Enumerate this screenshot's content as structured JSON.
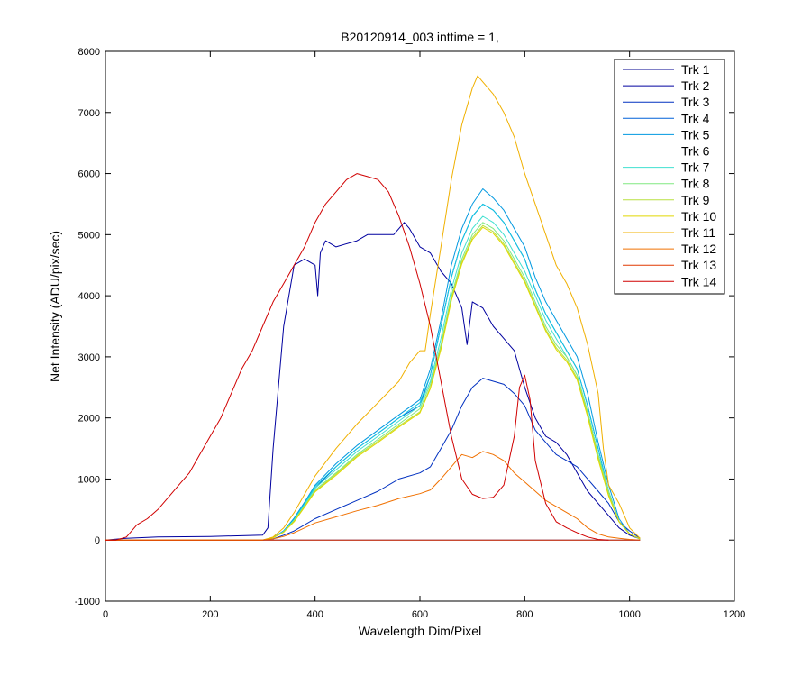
{
  "chart_data": {
    "type": "line",
    "title": "B20120914_003 inttime = 1,",
    "xlabel": "Wavelength Dim/Pixel",
    "ylabel": "Net Intensity (ADU/pix/sec)",
    "xlim": [
      0,
      1200
    ],
    "ylim": [
      -1000,
      8000
    ],
    "xticks": [
      "0",
      "200",
      "400",
      "600",
      "800",
      "1000",
      "1200"
    ],
    "yticks": [
      "-1000",
      "0",
      "1000",
      "2000",
      "3000",
      "4000",
      "5000",
      "6000",
      "7000",
      "8000"
    ],
    "grid": false,
    "legend": "top-right",
    "series": [
      {
        "name": "Trk 1",
        "color": "#00008f",
        "x": [
          0,
          100,
          200,
          300,
          400,
          500,
          600,
          700,
          800,
          900,
          1000,
          1020
        ],
        "y": [
          0,
          0,
          0,
          0,
          0,
          0,
          0,
          0,
          0,
          0,
          0,
          0
        ]
      },
      {
        "name": "Trk 2",
        "color": "#00009f",
        "x": [
          0,
          40,
          100,
          200,
          300,
          310,
          320,
          340,
          360,
          380,
          400,
          405,
          410,
          420,
          440,
          480,
          500,
          520,
          550,
          570,
          580,
          600,
          620,
          640,
          660,
          680,
          690,
          700,
          720,
          740,
          760,
          780,
          800,
          820,
          840,
          860,
          880,
          900,
          920,
          940,
          960,
          980,
          1000,
          1020
        ],
        "y": [
          0,
          30,
          50,
          60,
          80,
          200,
          1500,
          3500,
          4500,
          4600,
          4500,
          4000,
          4700,
          4900,
          4800,
          4900,
          5000,
          5000,
          5000,
          5200,
          5100,
          4800,
          4700,
          4400,
          4200,
          3800,
          3200,
          3900,
          3800,
          3500,
          3300,
          3100,
          2500,
          2000,
          1700,
          1600,
          1400,
          1100,
          800,
          600,
          400,
          200,
          80,
          20
        ]
      },
      {
        "name": "Trk 3",
        "color": "#0030c0",
        "x": [
          0,
          300,
          320,
          340,
          360,
          380,
          400,
          440,
          480,
          520,
          560,
          600,
          620,
          640,
          660,
          680,
          700,
          720,
          740,
          760,
          780,
          800,
          820,
          840,
          860,
          880,
          900,
          920,
          940,
          960,
          980,
          1000,
          1020
        ],
        "y": [
          0,
          0,
          20,
          80,
          150,
          250,
          350,
          500,
          650,
          800,
          1000,
          1100,
          1200,
          1500,
          1800,
          2200,
          2500,
          2650,
          2600,
          2550,
          2400,
          2200,
          1800,
          1600,
          1400,
          1300,
          1200,
          1000,
          800,
          600,
          300,
          150,
          30
        ]
      },
      {
        "name": "Trk 4",
        "color": "#0060d8",
        "x": [
          0,
          300,
          320,
          340,
          360,
          380,
          400,
          440,
          480,
          520,
          560,
          600,
          620,
          640,
          660,
          680,
          700,
          720,
          740,
          760,
          780,
          800,
          820,
          840,
          860,
          880,
          900,
          920,
          940,
          960,
          980,
          1000,
          1020
        ],
        "y": [
          0,
          0,
          40,
          150,
          350,
          600,
          850,
          1200,
          1500,
          1750,
          2000,
          2200,
          2700,
          3500,
          4300,
          4900,
          5300,
          5500,
          5400,
          5200,
          4900,
          4600,
          4100,
          3700,
          3400,
          3100,
          2800,
          2200,
          1500,
          800,
          300,
          100,
          20
        ]
      },
      {
        "name": "Trk 5",
        "color": "#0098e0",
        "x": [
          0,
          300,
          320,
          340,
          360,
          380,
          400,
          440,
          480,
          520,
          560,
          600,
          620,
          640,
          660,
          680,
          700,
          720,
          740,
          760,
          780,
          800,
          820,
          840,
          860,
          880,
          900,
          920,
          940,
          960,
          980,
          1000,
          1020
        ],
        "y": [
          0,
          0,
          40,
          150,
          360,
          620,
          900,
          1250,
          1550,
          1800,
          2050,
          2300,
          2800,
          3600,
          4500,
          5100,
          5500,
          5750,
          5600,
          5400,
          5100,
          4800,
          4300,
          3900,
          3600,
          3300,
          3000,
          2400,
          1600,
          900,
          350,
          100,
          20
        ]
      },
      {
        "name": "Trk 6",
        "color": "#10c8e0",
        "x": [
          0,
          300,
          320,
          340,
          360,
          380,
          400,
          440,
          480,
          520,
          560,
          600,
          620,
          640,
          660,
          680,
          700,
          720,
          740,
          760,
          780,
          800,
          820,
          840,
          860,
          880,
          900,
          920,
          940,
          960,
          980,
          1000,
          1020
        ],
        "y": [
          0,
          0,
          40,
          140,
          340,
          600,
          880,
          1200,
          1500,
          1750,
          2000,
          2250,
          2700,
          3500,
          4300,
          4900,
          5300,
          5500,
          5400,
          5200,
          4900,
          4600,
          4100,
          3700,
          3400,
          3100,
          2800,
          2200,
          1500,
          800,
          300,
          100,
          20
        ]
      },
      {
        "name": "Trk 7",
        "color": "#40e0d0",
        "x": [
          0,
          300,
          320,
          340,
          360,
          380,
          400,
          440,
          480,
          520,
          560,
          600,
          620,
          640,
          660,
          680,
          700,
          720,
          740,
          760,
          780,
          800,
          820,
          840,
          860,
          880,
          900,
          920,
          940,
          960,
          980,
          1000,
          1020
        ],
        "y": [
          0,
          0,
          40,
          140,
          330,
          580,
          850,
          1150,
          1450,
          1700,
          1950,
          2200,
          2600,
          3300,
          4100,
          4700,
          5100,
          5300,
          5200,
          5000,
          4700,
          4400,
          4000,
          3600,
          3300,
          3000,
          2700,
          2100,
          1400,
          800,
          300,
          100,
          20
        ]
      },
      {
        "name": "Trk 8",
        "color": "#80e880",
        "x": [
          0,
          300,
          320,
          340,
          360,
          380,
          400,
          440,
          480,
          520,
          560,
          600,
          620,
          640,
          660,
          680,
          700,
          720,
          740,
          760,
          780,
          800,
          820,
          840,
          860,
          880,
          900,
          920,
          940,
          960,
          980,
          1000,
          1020
        ],
        "y": [
          0,
          0,
          40,
          130,
          320,
          560,
          820,
          1100,
          1400,
          1650,
          1900,
          2150,
          2550,
          3200,
          4000,
          4600,
          5000,
          5200,
          5100,
          4900,
          4600,
          4300,
          3900,
          3500,
          3200,
          3000,
          2700,
          2100,
          1400,
          800,
          300,
          100,
          20
        ]
      },
      {
        "name": "Trk 9",
        "color": "#b8e040",
        "x": [
          0,
          300,
          320,
          340,
          360,
          380,
          400,
          440,
          480,
          520,
          560,
          600,
          620,
          640,
          660,
          680,
          700,
          720,
          740,
          760,
          780,
          800,
          820,
          840,
          860,
          880,
          900,
          920,
          940,
          960,
          980,
          1000,
          1020
        ],
        "y": [
          0,
          0,
          40,
          130,
          310,
          550,
          800,
          1080,
          1380,
          1620,
          1870,
          2100,
          2500,
          3150,
          3950,
          4550,
          4950,
          5150,
          5050,
          4850,
          4550,
          4250,
          3850,
          3450,
          3150,
          2950,
          2650,
          2050,
          1350,
          750,
          300,
          100,
          20
        ]
      },
      {
        "name": "Trk 10",
        "color": "#e0d800",
        "x": [
          0,
          300,
          320,
          340,
          360,
          380,
          400,
          440,
          480,
          520,
          560,
          600,
          620,
          640,
          660,
          680,
          700,
          720,
          740,
          760,
          780,
          800,
          820,
          840,
          860,
          880,
          900,
          920,
          940,
          960,
          980,
          1000,
          1020
        ],
        "y": [
          0,
          0,
          40,
          130,
          300,
          540,
          790,
          1060,
          1360,
          1600,
          1850,
          2080,
          2480,
          3120,
          3920,
          4520,
          4920,
          5120,
          5020,
          4820,
          4520,
          4220,
          3820,
          3420,
          3120,
          2920,
          2620,
          2020,
          1320,
          720,
          300,
          100,
          20
        ]
      },
      {
        "name": "Trk 11",
        "color": "#f0b000",
        "x": [
          0,
          300,
          320,
          340,
          360,
          380,
          400,
          440,
          480,
          520,
          560,
          580,
          600,
          610,
          620,
          640,
          660,
          680,
          700,
          710,
          720,
          740,
          760,
          780,
          800,
          820,
          840,
          860,
          880,
          900,
          920,
          940,
          950,
          960,
          980,
          1000,
          1020
        ],
        "y": [
          0,
          0,
          50,
          200,
          450,
          750,
          1050,
          1500,
          1900,
          2250,
          2600,
          2900,
          3100,
          3100,
          3700,
          4800,
          5900,
          6800,
          7400,
          7600,
          7500,
          7300,
          7000,
          6600,
          6000,
          5500,
          5000,
          4500,
          4200,
          3800,
          3200,
          2400,
          1500,
          900,
          600,
          200,
          30
        ]
      },
      {
        "name": "Trk 12",
        "color": "#f07000",
        "x": [
          0,
          300,
          320,
          340,
          360,
          380,
          400,
          440,
          480,
          520,
          560,
          600,
          620,
          640,
          660,
          680,
          700,
          720,
          740,
          760,
          780,
          800,
          820,
          840,
          860,
          880,
          900,
          920,
          940,
          960,
          980,
          1000,
          1020
        ],
        "y": [
          0,
          0,
          20,
          60,
          120,
          200,
          280,
          380,
          480,
          570,
          680,
          760,
          820,
          1000,
          1200,
          1400,
          1350,
          1450,
          1400,
          1300,
          1100,
          950,
          800,
          650,
          550,
          450,
          350,
          200,
          100,
          50,
          30,
          10,
          0
        ]
      },
      {
        "name": "Trk 13",
        "color": "#e03800",
        "x": [
          0,
          100,
          200,
          300,
          400,
          500,
          600,
          700,
          800,
          900,
          1000,
          1020
        ],
        "y": [
          0,
          0,
          0,
          0,
          0,
          0,
          0,
          0,
          0,
          0,
          0,
          0
        ]
      },
      {
        "name": "Trk 14",
        "color": "#d00000",
        "x": [
          0,
          20,
          40,
          50,
          60,
          80,
          100,
          120,
          140,
          160,
          180,
          200,
          220,
          240,
          260,
          280,
          300,
          320,
          340,
          360,
          380,
          400,
          420,
          440,
          460,
          480,
          500,
          520,
          540,
          560,
          580,
          600,
          620,
          640,
          660,
          680,
          700,
          720,
          740,
          760,
          780,
          790,
          800,
          810,
          820,
          840,
          860,
          880,
          900,
          920,
          940,
          960
        ],
        "y": [
          0,
          0,
          50,
          150,
          250,
          350,
          500,
          700,
          900,
          1100,
          1400,
          1700,
          2000,
          2400,
          2800,
          3100,
          3500,
          3900,
          4200,
          4500,
          4800,
          5200,
          5500,
          5700,
          5900,
          6000,
          5950,
          5900,
          5700,
          5300,
          4800,
          4200,
          3500,
          2600,
          1700,
          1000,
          750,
          680,
          700,
          900,
          1700,
          2500,
          2700,
          2300,
          1300,
          600,
          300,
          200,
          120,
          50,
          10,
          0
        ]
      }
    ]
  }
}
